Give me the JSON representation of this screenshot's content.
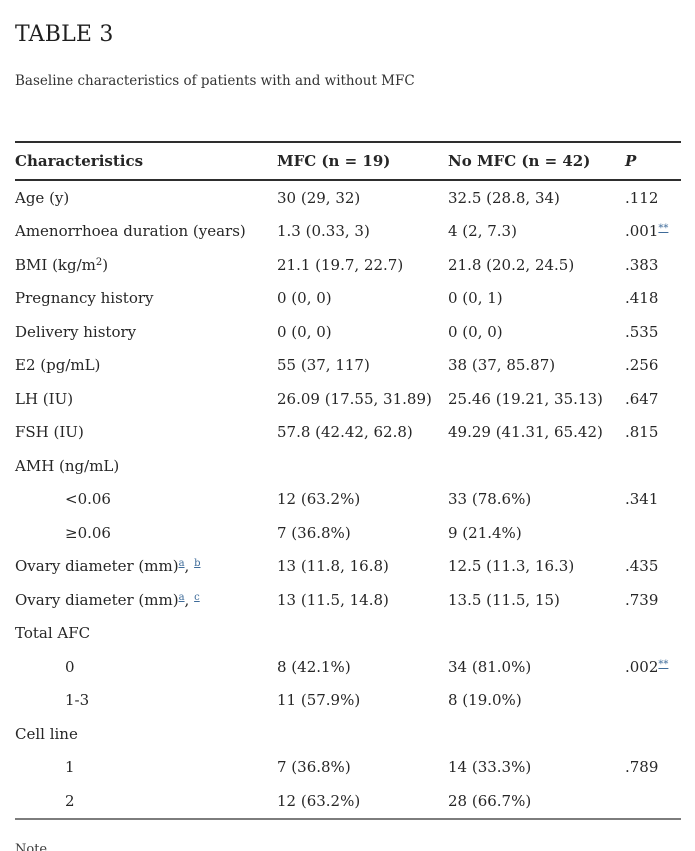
{
  "page": {
    "title": "TABLE 3",
    "subtitle": "Baseline characteristics of patients with and without MFC",
    "note": "Note"
  },
  "colors": {
    "text": "#262626",
    "footnote_link": "#3e6b99",
    "border_top": "#2e2e2e",
    "border_bottom": "#7d7d7d"
  },
  "table": {
    "headers": [
      "Characteristics",
      "MFC (n = 19)",
      "No MFC (n = 42)",
      "P"
    ],
    "rows": [
      {
        "type": "data",
        "label": [
          {
            "t": "Age (y)"
          }
        ],
        "mfc": "30 (29, 32)",
        "nomfc": "32.5 (28.8, 34)",
        "p": [
          {
            "t": ".112"
          }
        ]
      },
      {
        "type": "data",
        "label": [
          {
            "t": "Amenorrhoea duration (years)"
          }
        ],
        "mfc": "1.3 (0.33, 3)",
        "nomfc": "4 (2, 7.3)",
        "p": [
          {
            "t": ".001"
          },
          {
            "t": "**",
            "sup": true,
            "link": true
          }
        ]
      },
      {
        "type": "data",
        "label": [
          {
            "t": "BMI (kg/m"
          },
          {
            "t": "2",
            "sup": true
          },
          {
            "t": ")"
          }
        ],
        "mfc": "21.1 (19.7, 22.7)",
        "nomfc": "21.8 (20.2, 24.5)",
        "p": [
          {
            "t": ".383"
          }
        ]
      },
      {
        "type": "data",
        "label": [
          {
            "t": "Pregnancy history"
          }
        ],
        "mfc": "0 (0, 0)",
        "nomfc": "0 (0, 1)",
        "p": [
          {
            "t": ".418"
          }
        ]
      },
      {
        "type": "data",
        "label": [
          {
            "t": "Delivery history"
          }
        ],
        "mfc": "0 (0, 0)",
        "nomfc": "0 (0, 0)",
        "p": [
          {
            "t": ".535"
          }
        ]
      },
      {
        "type": "data",
        "label": [
          {
            "t": "E2 (pg/mL)"
          }
        ],
        "mfc": "55 (37, 117)",
        "nomfc": "38 (37, 85.87)",
        "p": [
          {
            "t": ".256"
          }
        ]
      },
      {
        "type": "data",
        "label": [
          {
            "t": "LH (IU)"
          }
        ],
        "mfc": "26.09 (17.55, 31.89)",
        "nomfc": "25.46 (19.21, 35.13)",
        "p": [
          {
            "t": ".647"
          }
        ]
      },
      {
        "type": "data",
        "label": [
          {
            "t": "FSH (IU)"
          }
        ],
        "mfc": "57.8 (42.42, 62.8)",
        "nomfc": "49.29 (41.31, 65.42)",
        "p": [
          {
            "t": ".815"
          }
        ]
      },
      {
        "type": "group",
        "label": [
          {
            "t": "AMH (ng/mL)"
          }
        ],
        "mfc": "",
        "nomfc": "",
        "p": []
      },
      {
        "type": "sub",
        "label": [
          {
            "t": "<0.06"
          }
        ],
        "mfc": "12 (63.2%)",
        "nomfc": "33 (78.6%)",
        "p": [
          {
            "t": ".341"
          }
        ]
      },
      {
        "type": "sub",
        "label": [
          {
            "t": "≥0.06"
          }
        ],
        "mfc": "7 (36.8%)",
        "nomfc": "9 (21.4%)",
        "p": []
      },
      {
        "type": "data",
        "label": [
          {
            "t": "Ovary diameter (mm)"
          },
          {
            "t": "a",
            "sup": true,
            "link": true
          },
          {
            "t": ", "
          },
          {
            "t": "b",
            "sup": true,
            "link": true
          }
        ],
        "mfc": "13 (11.8, 16.8)",
        "nomfc": "12.5 (11.3, 16.3)",
        "p": [
          {
            "t": ".435"
          }
        ]
      },
      {
        "type": "data",
        "label": [
          {
            "t": "Ovary diameter (mm)"
          },
          {
            "t": "a",
            "sup": true,
            "link": true
          },
          {
            "t": ", "
          },
          {
            "t": "c",
            "sup": true,
            "link": true
          }
        ],
        "mfc": "13 (11.5, 14.8)",
        "nomfc": "13.5 (11.5, 15)",
        "p": [
          {
            "t": ".739"
          }
        ]
      },
      {
        "type": "group",
        "label": [
          {
            "t": "Total AFC"
          }
        ],
        "mfc": "",
        "nomfc": "",
        "p": []
      },
      {
        "type": "sub",
        "label": [
          {
            "t": "0"
          }
        ],
        "mfc": "8 (42.1%)",
        "nomfc": "34 (81.0%)",
        "p": [
          {
            "t": ".002"
          },
          {
            "t": "**",
            "sup": true,
            "link": true
          }
        ]
      },
      {
        "type": "sub",
        "label": [
          {
            "t": "1-3"
          }
        ],
        "mfc": "11 (57.9%)",
        "nomfc": "8 (19.0%)",
        "p": []
      },
      {
        "type": "group",
        "label": [
          {
            "t": "Cell line"
          }
        ],
        "mfc": "",
        "nomfc": "",
        "p": []
      },
      {
        "type": "sub",
        "label": [
          {
            "t": "1"
          }
        ],
        "mfc": "7 (36.8%)",
        "nomfc": "14 (33.3%)",
        "p": [
          {
            "t": ".789"
          }
        ]
      },
      {
        "type": "sub",
        "label": [
          {
            "t": "2"
          }
        ],
        "mfc": "12 (63.2%)",
        "nomfc": "28 (66.7%)",
        "p": []
      }
    ]
  }
}
